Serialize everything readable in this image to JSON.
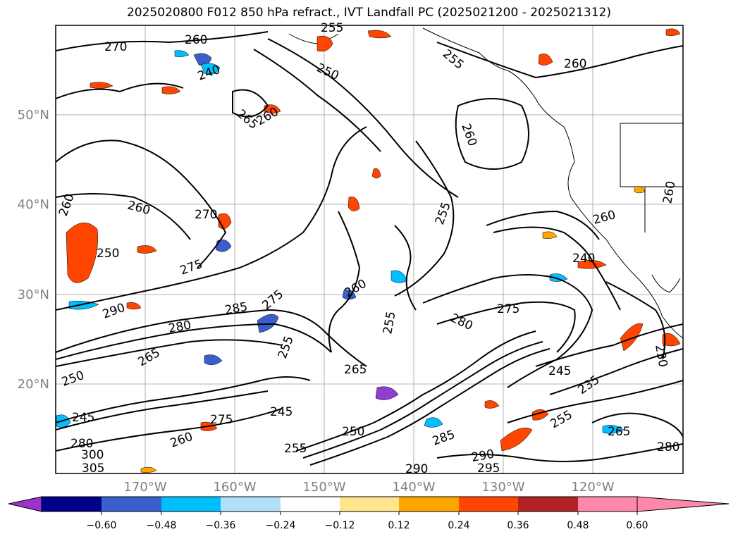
{
  "title": "2025020800 F012 850 hPa refract., IVT Landfall PC (2025021200 - 2025021312)",
  "latitude_labels": [
    "50°N",
    "40°N",
    "30°N",
    "20°N"
  ],
  "longitude_labels": [
    "170°W",
    "160°W",
    "150°W",
    "140°W",
    "130°W",
    "120°W"
  ],
  "colorbar": {
    "ticks": [
      "−0.60",
      "−0.48",
      "−0.36",
      "−0.24",
      "−0.12",
      "0.12",
      "0.24",
      "0.36",
      "0.48",
      "0.60"
    ],
    "colors": [
      "#9933cc",
      "#00008b",
      "#3a5fcd",
      "#00bfff",
      "#b0e0f8",
      "#ffffff",
      "#ffe68c",
      "#ffa500",
      "#ff4500",
      "#b22222",
      "#ff88aa"
    ]
  },
  "contour_labels": [
    "270",
    "260",
    "255",
    "250",
    "240",
    "265",
    "260",
    "260",
    "255",
    "260",
    "270",
    "260",
    "250",
    "275",
    "290",
    "285",
    "280",
    "265",
    "275",
    "255",
    "250",
    "245",
    "260",
    "245",
    "240",
    "255",
    "285",
    "250",
    "255",
    "260",
    "275",
    "280",
    "275",
    "265",
    "290",
    "280",
    "290",
    "295",
    "235",
    "245",
    "255",
    "265",
    "260",
    "230",
    "280",
    "300",
    "305",
    "260",
    "255",
    "260"
  ]
}
